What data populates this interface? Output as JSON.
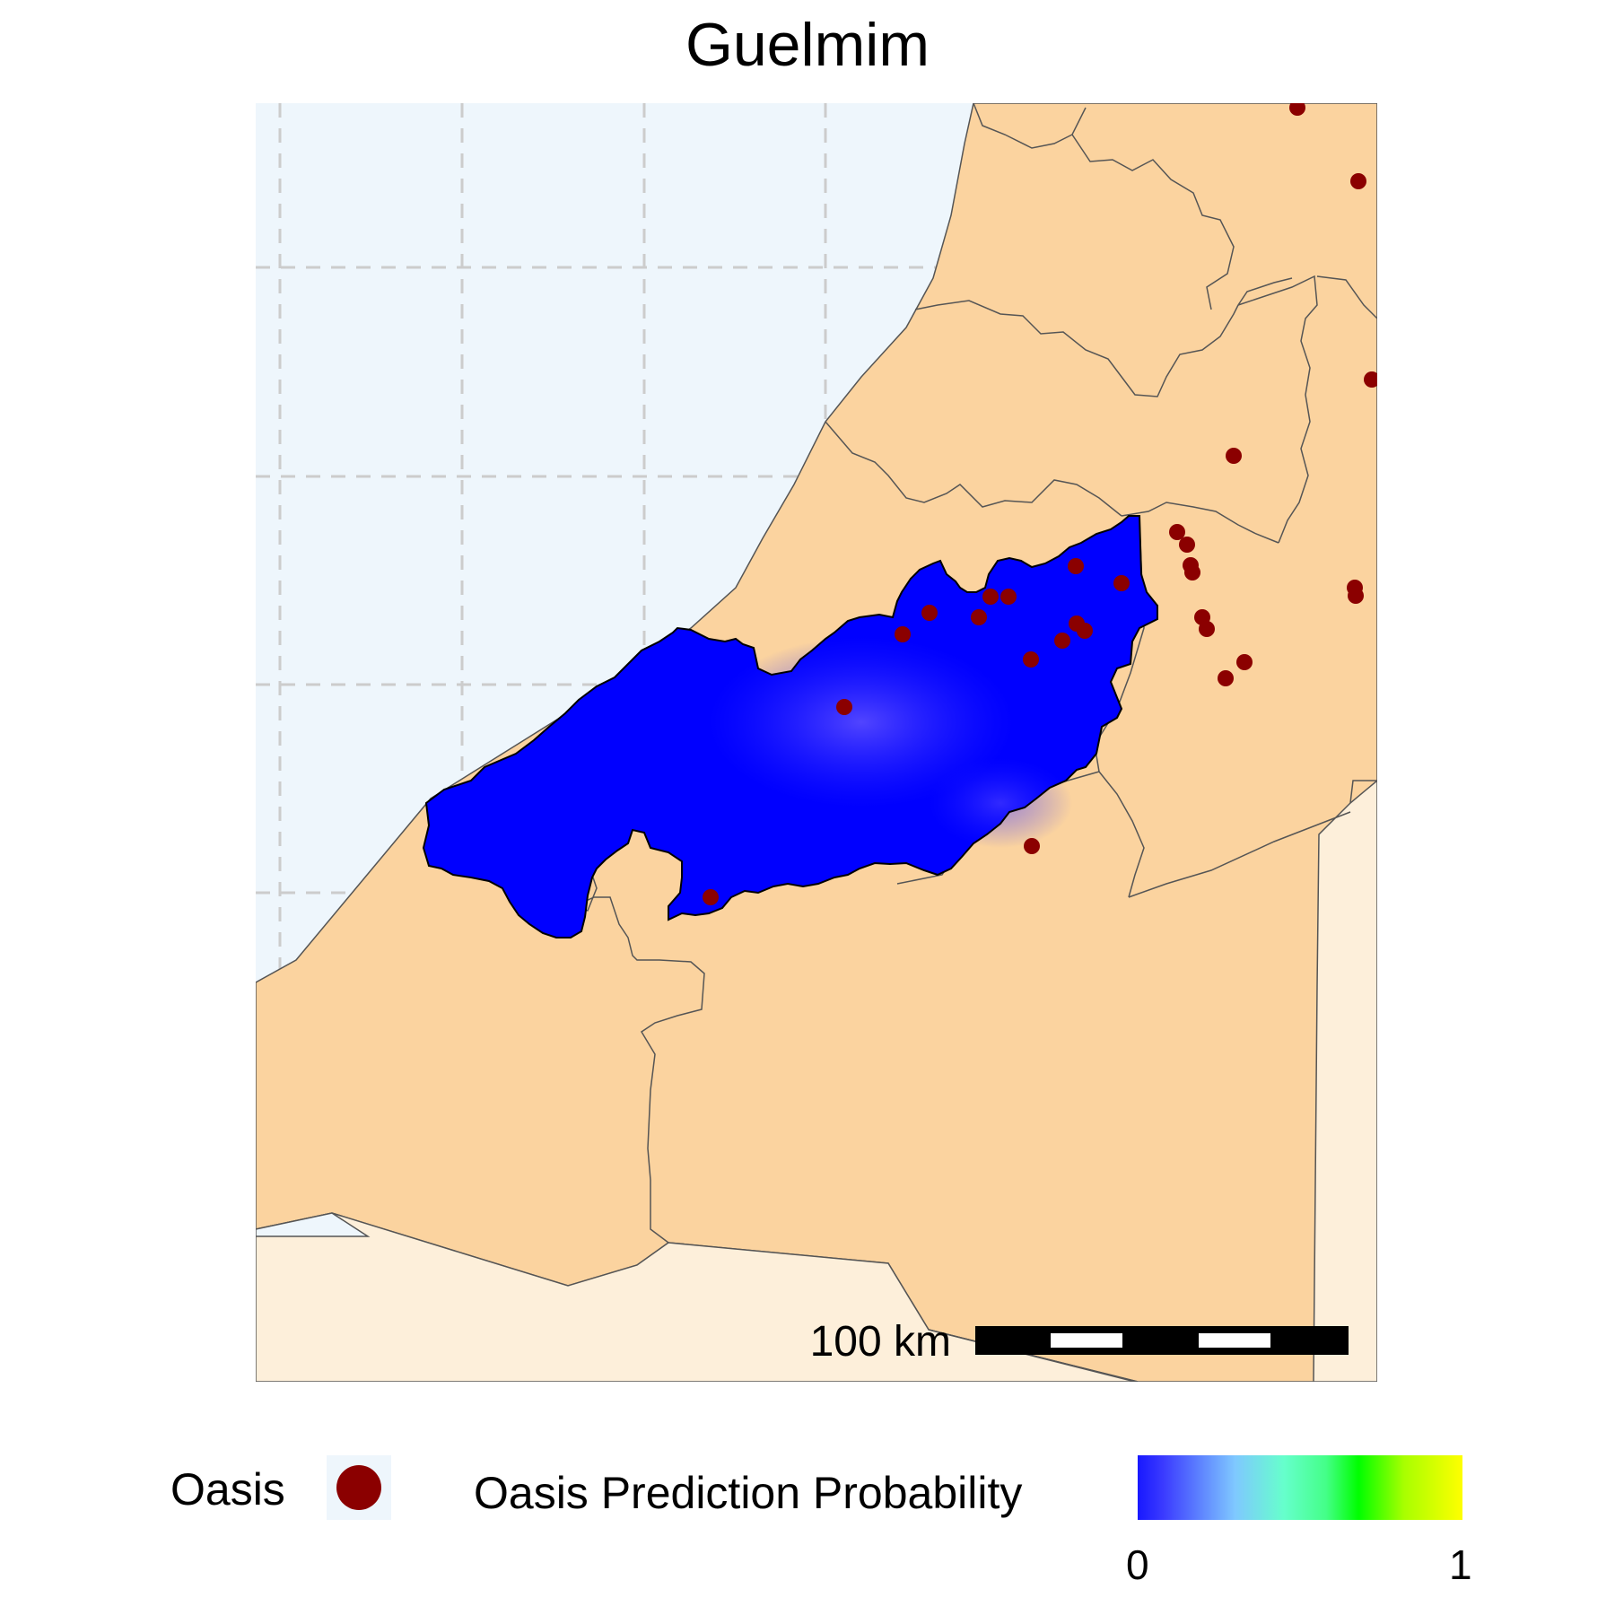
{
  "title": "Guelmim",
  "scale_bar": {
    "label": "100 km"
  },
  "legend": {
    "oasis_label": "Oasis",
    "oasis_color": "#8b0000",
    "probability_label": "Oasis Prediction Probability",
    "probability_min": "0",
    "probability_max": "1",
    "colormap": [
      "#1818ff",
      "#7fc8ff",
      "#66ffcc",
      "#00ff00",
      "#ffff00"
    ]
  },
  "colors": {
    "sea": "#eef6fc",
    "land": "#fbd39f",
    "outside_country": "#fdefda",
    "grid": "#cccccc",
    "border": "#555555",
    "prediction_raster": "#0000ff"
  }
}
